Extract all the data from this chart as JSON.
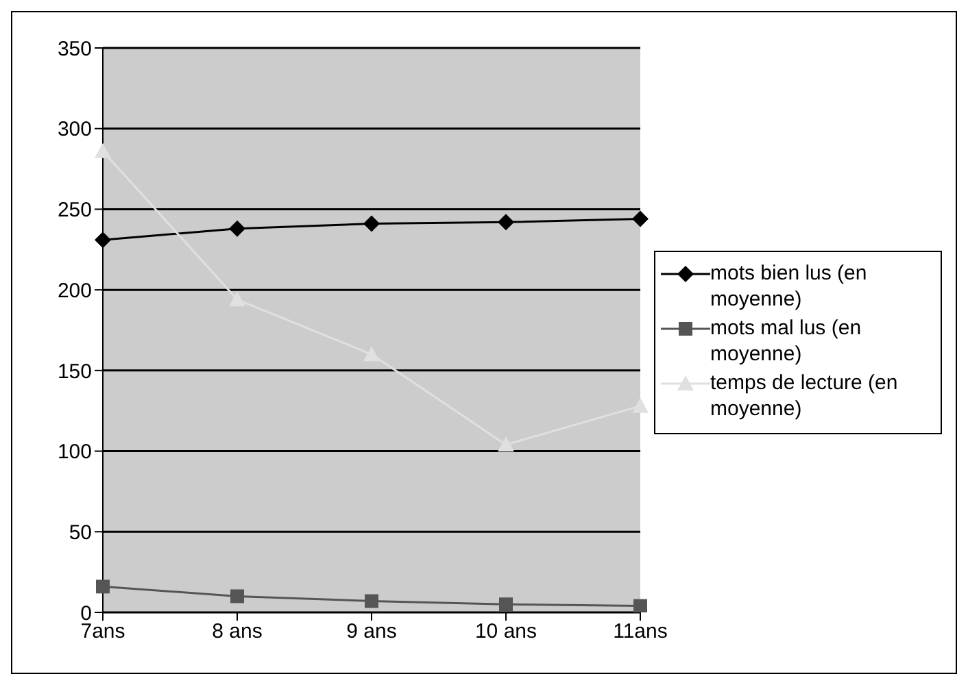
{
  "chart_data": {
    "type": "line",
    "categories": [
      "7ans",
      "8 ans",
      "9 ans",
      "10 ans",
      "11ans"
    ],
    "series": [
      {
        "name": "mots bien lus (en moyenne)",
        "color": "#000000",
        "marker": "diamond",
        "values": [
          231,
          238,
          241,
          242,
          244
        ]
      },
      {
        "name": "mots mal lus (en moyenne)",
        "color": "#555555",
        "marker": "square",
        "values": [
          16,
          10,
          7,
          5,
          4
        ]
      },
      {
        "name": "temps de lecture (en moyenne)",
        "color": "#e0e0e0",
        "marker": "triangle",
        "values": [
          286,
          194,
          160,
          104,
          128
        ]
      }
    ],
    "ylim": [
      0,
      350
    ],
    "yticks": [
      0,
      50,
      100,
      150,
      200,
      250,
      300,
      350
    ],
    "grid": "y",
    "legend": "right"
  }
}
